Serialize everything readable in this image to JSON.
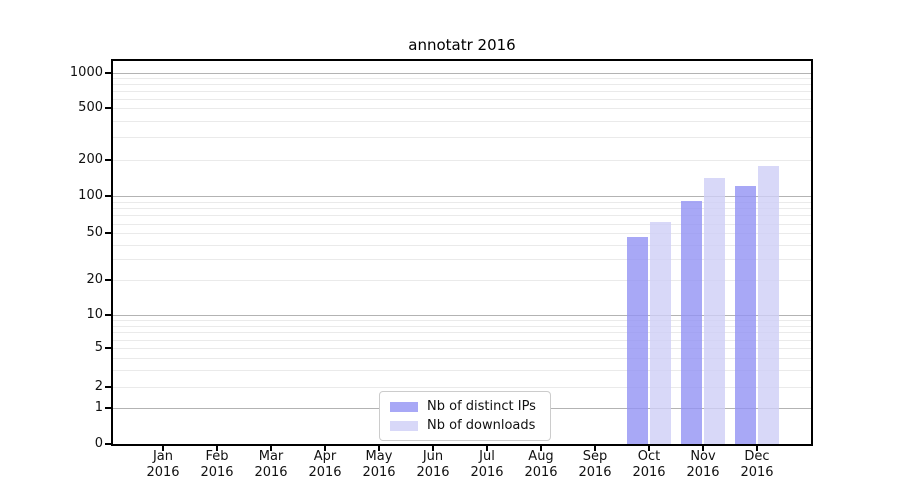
{
  "title": "annotatr 2016",
  "chart_data": {
    "type": "bar",
    "title": "annotatr 2016",
    "categories": [
      "Jan",
      "Feb",
      "Mar",
      "Apr",
      "May",
      "Jun",
      "Jul",
      "Aug",
      "Sep",
      "Oct",
      "Nov",
      "Dec"
    ],
    "year_label": "2016",
    "series": [
      {
        "name": "Nb of distinct IPs",
        "color": "#a8a8f6",
        "values": [
          null,
          null,
          null,
          null,
          null,
          null,
          null,
          null,
          null,
          47,
          92,
          122
        ]
      },
      {
        "name": "Nb of downloads",
        "color": "#d8d8f8",
        "values": [
          null,
          null,
          null,
          null,
          null,
          null,
          null,
          null,
          null,
          62,
          141,
          177
        ]
      }
    ],
    "y_ticks": [
      0,
      1,
      2,
      5,
      10,
      20,
      50,
      100,
      200,
      500,
      1000
    ],
    "yscale": "symlog",
    "ylim": [
      0,
      1250
    ],
    "grid": true,
    "legend_position": "lower center"
  }
}
